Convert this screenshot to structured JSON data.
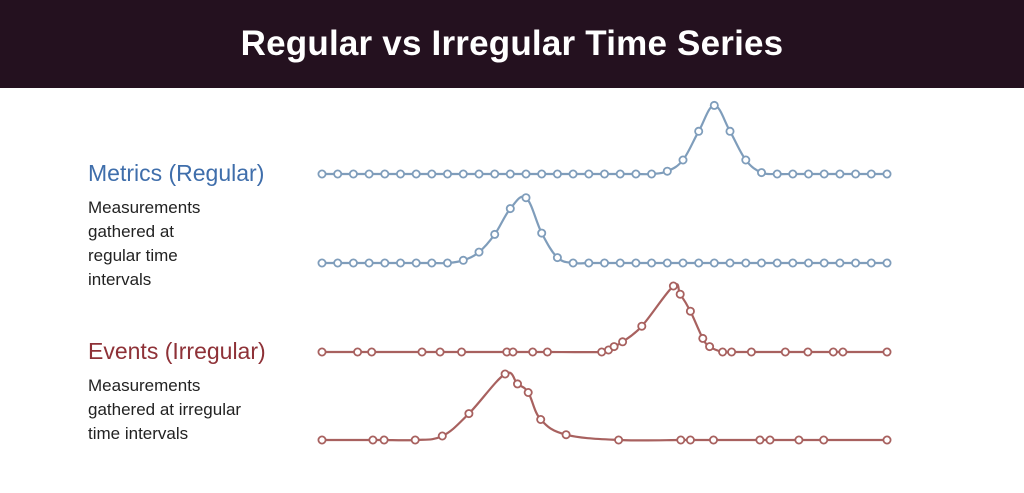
{
  "title": "Regular vs Irregular Time Series",
  "colors": {
    "banner_bg": "#24111f",
    "metrics": "#3f6eab",
    "metrics_line": "#7f9dbb",
    "events": "#8e3137",
    "events_line": "#a8615f"
  },
  "metrics": {
    "title": "Metrics (Regular)",
    "description": "Measurements\ngathered at\nregular time\nintervals"
  },
  "events": {
    "title": "Events (Irregular)",
    "description": "Measurements\ngathered at irregular\ntime intervals"
  },
  "chart_data": {
    "type": "line",
    "x_range": [
      0,
      100
    ],
    "y_range": [
      0,
      1
    ],
    "series": [
      {
        "x": [
          0,
          2.78,
          5.56,
          8.33,
          11.11,
          13.89,
          16.67,
          19.44,
          22.22,
          25,
          27.78,
          30.56,
          33.33,
          36.11,
          38.89,
          41.67,
          44.44,
          47.22,
          50,
          52.78,
          55.56,
          58.33,
          61.11,
          63.89,
          66.67,
          69.44,
          72.22,
          75,
          77.78,
          80.56,
          83.33,
          86.11,
          88.89,
          91.67,
          94.44,
          97.22,
          100
        ],
        "y": [
          0,
          0,
          0,
          0,
          0,
          0,
          0,
          0,
          0,
          0,
          0,
          0,
          0,
          0,
          0,
          0,
          0,
          0,
          0,
          0,
          0,
          0,
          0.04,
          0.2,
          0.61,
          0.98,
          0.61,
          0.2,
          0.02,
          0,
          0,
          0,
          0,
          0,
          0,
          0,
          0
        ]
      },
      {
        "x": [
          0,
          2.78,
          5.56,
          8.33,
          11.11,
          13.89,
          16.67,
          19.44,
          22.22,
          25,
          27.78,
          30.56,
          33.33,
          36.11,
          38.89,
          41.67,
          44.44,
          47.22,
          50,
          52.78,
          55.56,
          58.33,
          61.11,
          63.89,
          66.67,
          69.44,
          72.22,
          75,
          77.78,
          80.56,
          83.33,
          86.11,
          88.89,
          91.67,
          94.44,
          97.22,
          100
        ],
        "y": [
          0,
          0,
          0,
          0,
          0,
          0,
          0,
          0,
          0,
          0.04,
          0.16,
          0.42,
          0.8,
          0.96,
          0.44,
          0.08,
          0,
          0,
          0,
          0,
          0,
          0,
          0,
          0,
          0,
          0,
          0,
          0,
          0,
          0,
          0,
          0,
          0,
          0,
          0,
          0,
          0
        ]
      },
      {
        "x": [
          0,
          6.3,
          8.8,
          17.7,
          20.9,
          24.7,
          32.7,
          33.8,
          37.3,
          39.9,
          49.5,
          50.7,
          51.7,
          53.2,
          56.6,
          62.2,
          63.4,
          65.2,
          67.4,
          68.6,
          70.9,
          72.5,
          76,
          82,
          86,
          90.5,
          92.2,
          100
        ],
        "y": [
          0,
          0,
          0,
          0,
          0,
          0,
          0,
          0,
          0,
          0,
          0,
          0.03,
          0.08,
          0.15,
          0.38,
          0.97,
          0.85,
          0.6,
          0.2,
          0.08,
          0,
          0,
          0,
          0,
          0,
          0,
          0,
          0
        ]
      },
      {
        "x": [
          0,
          9,
          11,
          16.5,
          21.3,
          26,
          32.4,
          34.6,
          36.5,
          38.7,
          43.2,
          52.5,
          63.5,
          65.2,
          69.3,
          77.5,
          79.3,
          84.4,
          88.8,
          100
        ],
        "y": [
          0,
          0,
          0,
          0,
          0.06,
          0.4,
          1.0,
          0.85,
          0.72,
          0.31,
          0.08,
          0,
          0,
          0,
          0,
          0,
          0,
          0,
          0,
          0
        ]
      }
    ]
  }
}
